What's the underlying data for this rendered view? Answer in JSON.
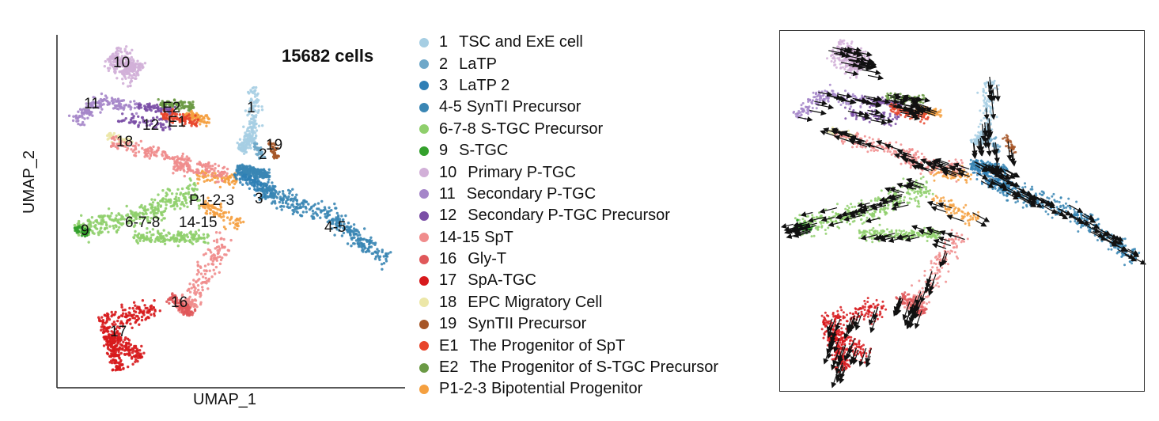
{
  "chart_data": [
    {
      "type": "scatter",
      "title": "15682 cells",
      "xlabel": "UMAP_1",
      "ylabel": "UMAP_2",
      "legend_placement": "right",
      "clusters": [
        {
          "key": "1",
          "number": "1",
          "label": "TSC and ExE cell",
          "color": "#a6cee3",
          "plot_label": "1"
        },
        {
          "key": "2",
          "number": "2",
          "label": "LaTP",
          "color": "#6fa8c9",
          "plot_label": "2"
        },
        {
          "key": "3",
          "number": "3",
          "label": "LaTP 2",
          "color": "#2f7fb5",
          "plot_label": "3"
        },
        {
          "key": "4-5",
          "number": "4-5",
          "label": "SynTI Precursor",
          "color": "#3a86b4",
          "plot_label": "4-5"
        },
        {
          "key": "6-7-8",
          "number": "6-7-8",
          "label": "S-TGC Precursor",
          "color": "#8fcf6c",
          "plot_label": "6-7-8"
        },
        {
          "key": "9",
          "number": "9",
          "label": "S-TGC",
          "color": "#33a02c",
          "plot_label": "9"
        },
        {
          "key": "10",
          "number": "10",
          "label": "Primary P-TGC",
          "color": "#d2b0d8",
          "plot_label": "10"
        },
        {
          "key": "11",
          "number": "11",
          "label": "Secondary P-TGC",
          "color": "#a586c9",
          "plot_label": "11"
        },
        {
          "key": "12",
          "number": "12",
          "label": "Secondary P-TGC Precursor",
          "color": "#7b4fa6",
          "plot_label": "12"
        },
        {
          "key": "14-15",
          "number": "14-15",
          "label": "SpT",
          "color": "#f08c8c",
          "plot_label": "14-15"
        },
        {
          "key": "16",
          "number": "16",
          "label": "Gly-T",
          "color": "#e0585a",
          "plot_label": "16"
        },
        {
          "key": "17",
          "number": "17",
          "label": "SpA-TGC",
          "color": "#d7191c",
          "plot_label": "17"
        },
        {
          "key": "18",
          "number": "18",
          "label": "EPC Migratory Cell",
          "color": "#ece7a8",
          "plot_label": "18"
        },
        {
          "key": "19",
          "number": "19",
          "label": "SynTII Precursor",
          "color": "#a65628",
          "plot_label": "19"
        },
        {
          "key": "E1",
          "number": "E1",
          "label": "The Progenitor of SpT",
          "color": "#e8452c",
          "plot_label": "E1"
        },
        {
          "key": "E2",
          "number": "E2",
          "label": "The Progenitor of S-TGC Precursor",
          "color": "#6b9a45",
          "plot_label": "E2"
        },
        {
          "key": "P1-2-3",
          "number": "P1-2-3",
          "label": "Bipotential Progenitor",
          "color": "#f5a040",
          "plot_label": "P1-2-3"
        }
      ]
    },
    {
      "type": "scatter",
      "title": "",
      "xlabel": "",
      "ylabel": "",
      "overlay": "velocity arrows",
      "arrow_color": "#111111"
    }
  ]
}
